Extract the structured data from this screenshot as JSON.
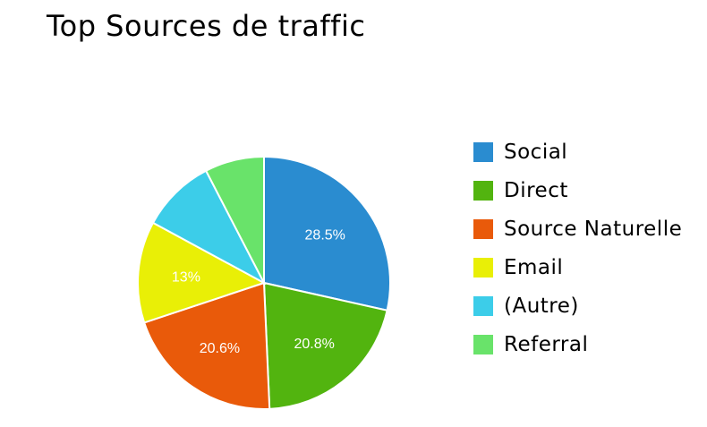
{
  "chart_data": {
    "type": "pie",
    "title": "Top Sources de traffic",
    "slices": [
      {
        "name": "Social",
        "value": 28.5,
        "label": "28.5%",
        "color": "#2a8cd0"
      },
      {
        "name": "Direct",
        "value": 20.8,
        "label": "20.8%",
        "color": "#52b40f"
      },
      {
        "name": "Source Naturelle",
        "value": 20.6,
        "label": "20.6%",
        "color": "#e95a0a"
      },
      {
        "name": "Email",
        "value": 13,
        "label": "13%",
        "color": "#e9ef06"
      },
      {
        "name": "(Autre)",
        "value": 9.5,
        "label": "",
        "color": "#3ccde9"
      },
      {
        "name": "Referral",
        "value": 7.6,
        "label": "",
        "color": "#69e36a"
      }
    ],
    "legend_position": "right"
  }
}
